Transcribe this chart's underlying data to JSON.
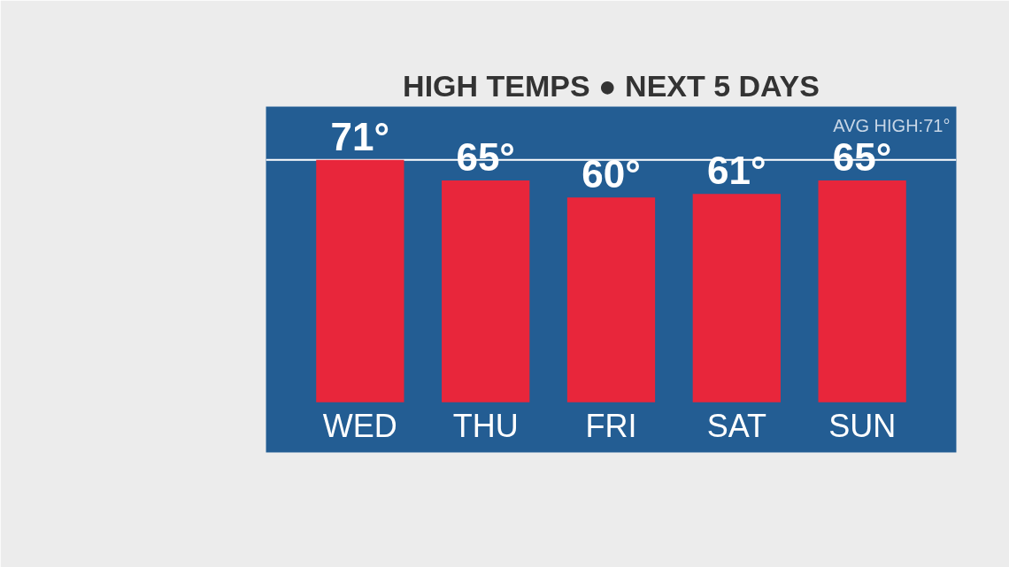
{
  "chart_data": {
    "type": "bar",
    "title": "HIGH TEMPS ● NEXT 5 DAYS",
    "categories": [
      "WED",
      "THU",
      "FRI",
      "SAT",
      "SUN"
    ],
    "values": [
      71,
      65,
      60,
      61,
      65
    ],
    "value_labels": [
      "71°",
      "65°",
      "60°",
      "61°",
      "65°"
    ],
    "color": "#e8263b",
    "ref_lines": [
      {
        "axis": "y",
        "value": 71,
        "label": "AVG HIGH:71°",
        "color": "#ffffff"
      }
    ],
    "grid": false
  }
}
